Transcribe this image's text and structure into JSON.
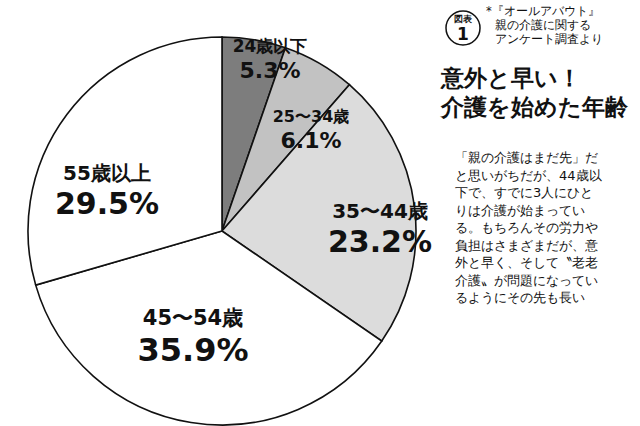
{
  "chart_data": {
    "type": "pie",
    "figure_label": "図表",
    "figure_number": "1",
    "source": [
      "*『オールアバウト』",
      "親の介護に関する",
      "アンケート調査より"
    ],
    "title": [
      "意外と早い！",
      "介護を始めた年齢"
    ],
    "annotations": [
      "「親の介護はまだ先」だ",
      "と思いがちだが、44歳以",
      "下で、すでに3人にひと",
      "りは介護が始まってい",
      "る。もちろんその労力や",
      "負担はさまざまだが、意",
      "外と早く、そして〝老老",
      "介護〟が問題になってい",
      "るようにその先も長い"
    ],
    "categories": [
      "24歳以下",
      "25〜34歳",
      "35〜44歳",
      "45〜54歳",
      "55歳以上"
    ],
    "values": [
      5.3,
      6.1,
      23.2,
      35.9,
      29.5
    ],
    "value_labels": [
      "5.3%",
      "6.1%",
      "23.2%",
      "35.9%",
      "29.5%"
    ],
    "colors": [
      "#7d7d7d",
      "#c2c2c2",
      "#dcdcdc",
      "#ffffff",
      "#ffffff"
    ],
    "data_labels": true
  }
}
